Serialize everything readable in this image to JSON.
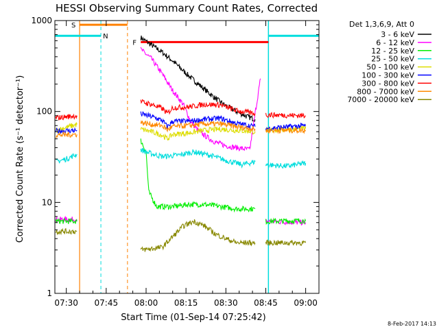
{
  "chart_data": {
    "type": "line",
    "title": "HESSI Observing Summary Count Rates, Corrected",
    "xlabel": "Start Time (01-Sep-14 07:25:42)",
    "ylabel": "Corrected Count Rate (s⁻¹ detector⁻¹)",
    "yscale": "log",
    "ylim": [
      1,
      1000
    ],
    "xlim_minutes": [
      445.7,
      545
    ],
    "x_ticks": [
      {
        "t": 450,
        "label": "07:30"
      },
      {
        "t": 465,
        "label": "07:45"
      },
      {
        "t": 480,
        "label": "08:00"
      },
      {
        "t": 495,
        "label": "08:15"
      },
      {
        "t": 510,
        "label": "08:30"
      },
      {
        "t": 525,
        "label": "08:45"
      },
      {
        "t": 540,
        "label": "09:00"
      }
    ],
    "y_ticks": [
      {
        "v": 1,
        "label": "1"
      },
      {
        "v": 10,
        "label": "10"
      },
      {
        "v": 100,
        "label": "100"
      },
      {
        "v": 1000,
        "label": "1000"
      }
    ],
    "grid": false,
    "legend_position": "right",
    "legend_header": "Det 1,3,6,9, Att 0",
    "series": [
      {
        "name": "3 - 6 keV",
        "color": "#000000",
        "segments": [
          [
            [
              478,
              650
            ],
            [
              482,
              540
            ],
            [
              486,
              450
            ],
            [
              490,
              360
            ],
            [
              494,
              280
            ],
            [
              498,
              220
            ],
            [
              502,
              175
            ],
            [
              506,
              140
            ],
            [
              510,
              115
            ],
            [
              514,
              100
            ],
            [
              518,
              88
            ],
            [
              521,
              82
            ]
          ]
        ]
      },
      {
        "name": "6 - 12 keV",
        "color": "#ff00ff",
        "segments": [
          [
            [
              446,
              6.5
            ],
            [
              454,
              6.5
            ]
          ],
          [
            [
              478,
              480
            ],
            [
              482,
              380
            ],
            [
              486,
              260
            ],
            [
              490,
              170
            ],
            [
              494,
              120
            ],
            [
              497,
              75
            ],
            [
              500,
              60
            ],
            [
              503,
              52
            ],
            [
              506,
              46
            ],
            [
              510,
              42
            ],
            [
              514,
              40
            ],
            [
              519,
              38
            ],
            [
              521,
              95
            ],
            [
              523,
              230
            ]
          ],
          [
            [
              525,
              6.2
            ],
            [
              540,
              6
            ]
          ]
        ]
      },
      {
        "name": "12 - 25 keV",
        "color": "#00ee00",
        "segments": [
          [
            [
              446,
              6.2
            ],
            [
              454,
              6.2
            ]
          ],
          [
            [
              478,
              48
            ],
            [
              480,
              36
            ],
            [
              481,
              13
            ],
            [
              484,
              9
            ],
            [
              490,
              9
            ],
            [
              496,
              9.5
            ],
            [
              502,
              9.5
            ],
            [
              508,
              9
            ],
            [
              514,
              8.5
            ],
            [
              521,
              8.5
            ]
          ],
          [
            [
              525,
              6.2
            ],
            [
              540,
              6.3
            ]
          ]
        ]
      },
      {
        "name": "25 - 50 keV",
        "color": "#00dddd",
        "segments": [
          [
            [
              446,
              28
            ],
            [
              450,
              30
            ],
            [
              454,
              34
            ]
          ],
          [
            [
              478,
              38
            ],
            [
              481,
              35
            ],
            [
              486,
              32
            ],
            [
              492,
              33
            ],
            [
              498,
              36
            ],
            [
              504,
              33
            ],
            [
              510,
              29
            ],
            [
              516,
              26
            ],
            [
              521,
              28
            ]
          ],
          [
            [
              525,
              26
            ],
            [
              533,
              25
            ],
            [
              540,
              27
            ]
          ]
        ]
      },
      {
        "name": "50 - 100 keV",
        "color": "#dddd00",
        "segments": [
          [
            [
              446,
              62
            ],
            [
              454,
              72
            ]
          ],
          [
            [
              478,
              64
            ],
            [
              482,
              60
            ],
            [
              486,
              55
            ],
            [
              488,
              50
            ],
            [
              490,
              56
            ],
            [
              496,
              58
            ],
            [
              502,
              62
            ],
            [
              508,
              64
            ],
            [
              514,
              62
            ],
            [
              521,
              60
            ]
          ],
          [
            [
              525,
              62
            ],
            [
              540,
              65
            ]
          ]
        ]
      },
      {
        "name": "100 - 300 keV",
        "color": "#0000ff",
        "segments": [
          [
            [
              446,
              61
            ],
            [
              454,
              62
            ]
          ],
          [
            [
              478,
              94
            ],
            [
              482,
              88
            ],
            [
              486,
              80
            ],
            [
              488,
              68
            ],
            [
              490,
              78
            ],
            [
              496,
              78
            ],
            [
              502,
              82
            ],
            [
              508,
              84
            ],
            [
              514,
              74
            ],
            [
              521,
              68
            ]
          ],
          [
            [
              525,
              65
            ],
            [
              540,
              70
            ]
          ]
        ]
      },
      {
        "name": "300 - 800 keV",
        "color": "#ff0000",
        "segments": [
          [
            [
              446,
              85
            ],
            [
              454,
              90
            ]
          ],
          [
            [
              478,
              128
            ],
            [
              482,
              120
            ],
            [
              486,
              108
            ],
            [
              488,
              95
            ],
            [
              490,
              110
            ],
            [
              496,
              112
            ],
            [
              502,
              120
            ],
            [
              508,
              118
            ],
            [
              514,
              102
            ],
            [
              521,
              95
            ]
          ],
          [
            [
              525,
              92
            ],
            [
              540,
              90
            ]
          ]
        ]
      },
      {
        "name": "800 - 7000 keV",
        "color": "#ff8800",
        "segments": [
          [
            [
              446,
              55
            ],
            [
              454,
              56
            ]
          ],
          [
            [
              478,
              76
            ],
            [
              482,
              72
            ],
            [
              486,
              70
            ],
            [
              488,
              63
            ],
            [
              490,
              68
            ],
            [
              496,
              70
            ],
            [
              502,
              73
            ],
            [
              508,
              73
            ],
            [
              514,
              68
            ],
            [
              521,
              64
            ]
          ],
          [
            [
              525,
              62
            ],
            [
              540,
              62
            ]
          ]
        ]
      },
      {
        "name": "7000 - 20000 keV",
        "color": "#888800",
        "segments": [
          [
            [
              446,
              4.8
            ],
            [
              454,
              4.8
            ]
          ],
          [
            [
              478,
              3.0
            ],
            [
              486,
              3.2
            ],
            [
              490,
              4.2
            ],
            [
              494,
              5.5
            ],
            [
              498,
              6.2
            ],
            [
              502,
              5.5
            ],
            [
              506,
              4.5
            ],
            [
              510,
              4.0
            ],
            [
              514,
              3.6
            ],
            [
              521,
              3.6
            ]
          ],
          [
            [
              525,
              3.6
            ],
            [
              540,
              3.6
            ]
          ]
        ]
      }
    ],
    "flags": {
      "saa": {
        "label": "S",
        "color": "#ff8000",
        "start": 455,
        "end": 473,
        "level": 900
      },
      "night": {
        "label": "N",
        "color": "#00dddd",
        "windows": [
          [
            445.7,
            463
          ],
          [
            526,
            545
          ]
        ],
        "level": 680
      },
      "flare": {
        "label": "F",
        "color": "#ff0000",
        "start": 478,
        "end": 526,
        "level": 580
      }
    },
    "footer": "8-Feb-2017 14:13"
  }
}
